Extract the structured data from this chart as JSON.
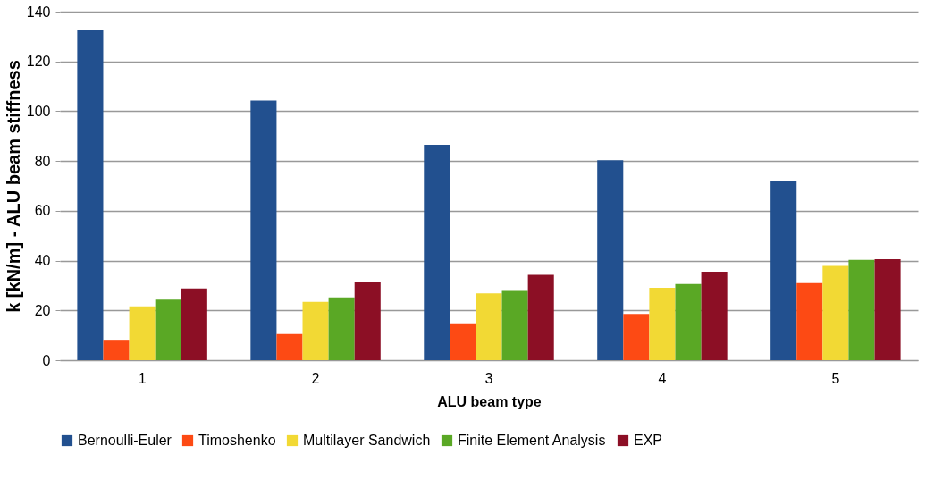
{
  "chart_data": {
    "type": "bar",
    "xlabel": "ALU beam type",
    "ylabel": "k [kN/m] - ALU beam stiffness",
    "categories": [
      "1",
      "2",
      "3",
      "4",
      "5"
    ],
    "series": [
      {
        "name": "Bernoulli-Euler",
        "color": "#22508f",
        "values": [
          132.5,
          104.3,
          86.5,
          80.3,
          72.1
        ]
      },
      {
        "name": "Timoshenko",
        "color": "#fd4a14",
        "values": [
          8.2,
          10.5,
          14.8,
          18.6,
          31.0
        ]
      },
      {
        "name": "Multilayer Sandwich",
        "color": "#f2d934",
        "values": [
          21.6,
          23.4,
          26.8,
          29.1,
          37.9
        ]
      },
      {
        "name": "Finite Element Analysis",
        "color": "#5aa825",
        "values": [
          24.3,
          25.2,
          28.2,
          30.6,
          40.3
        ]
      },
      {
        "name": "EXP",
        "color": "#8c0f25",
        "values": [
          28.8,
          31.3,
          34.3,
          35.5,
          40.6
        ]
      }
    ],
    "ylim": [
      0,
      140
    ],
    "yticks": [
      0,
      20,
      40,
      60,
      80,
      100,
      120,
      140
    ],
    "grid": "y",
    "legend": "bottom"
  }
}
